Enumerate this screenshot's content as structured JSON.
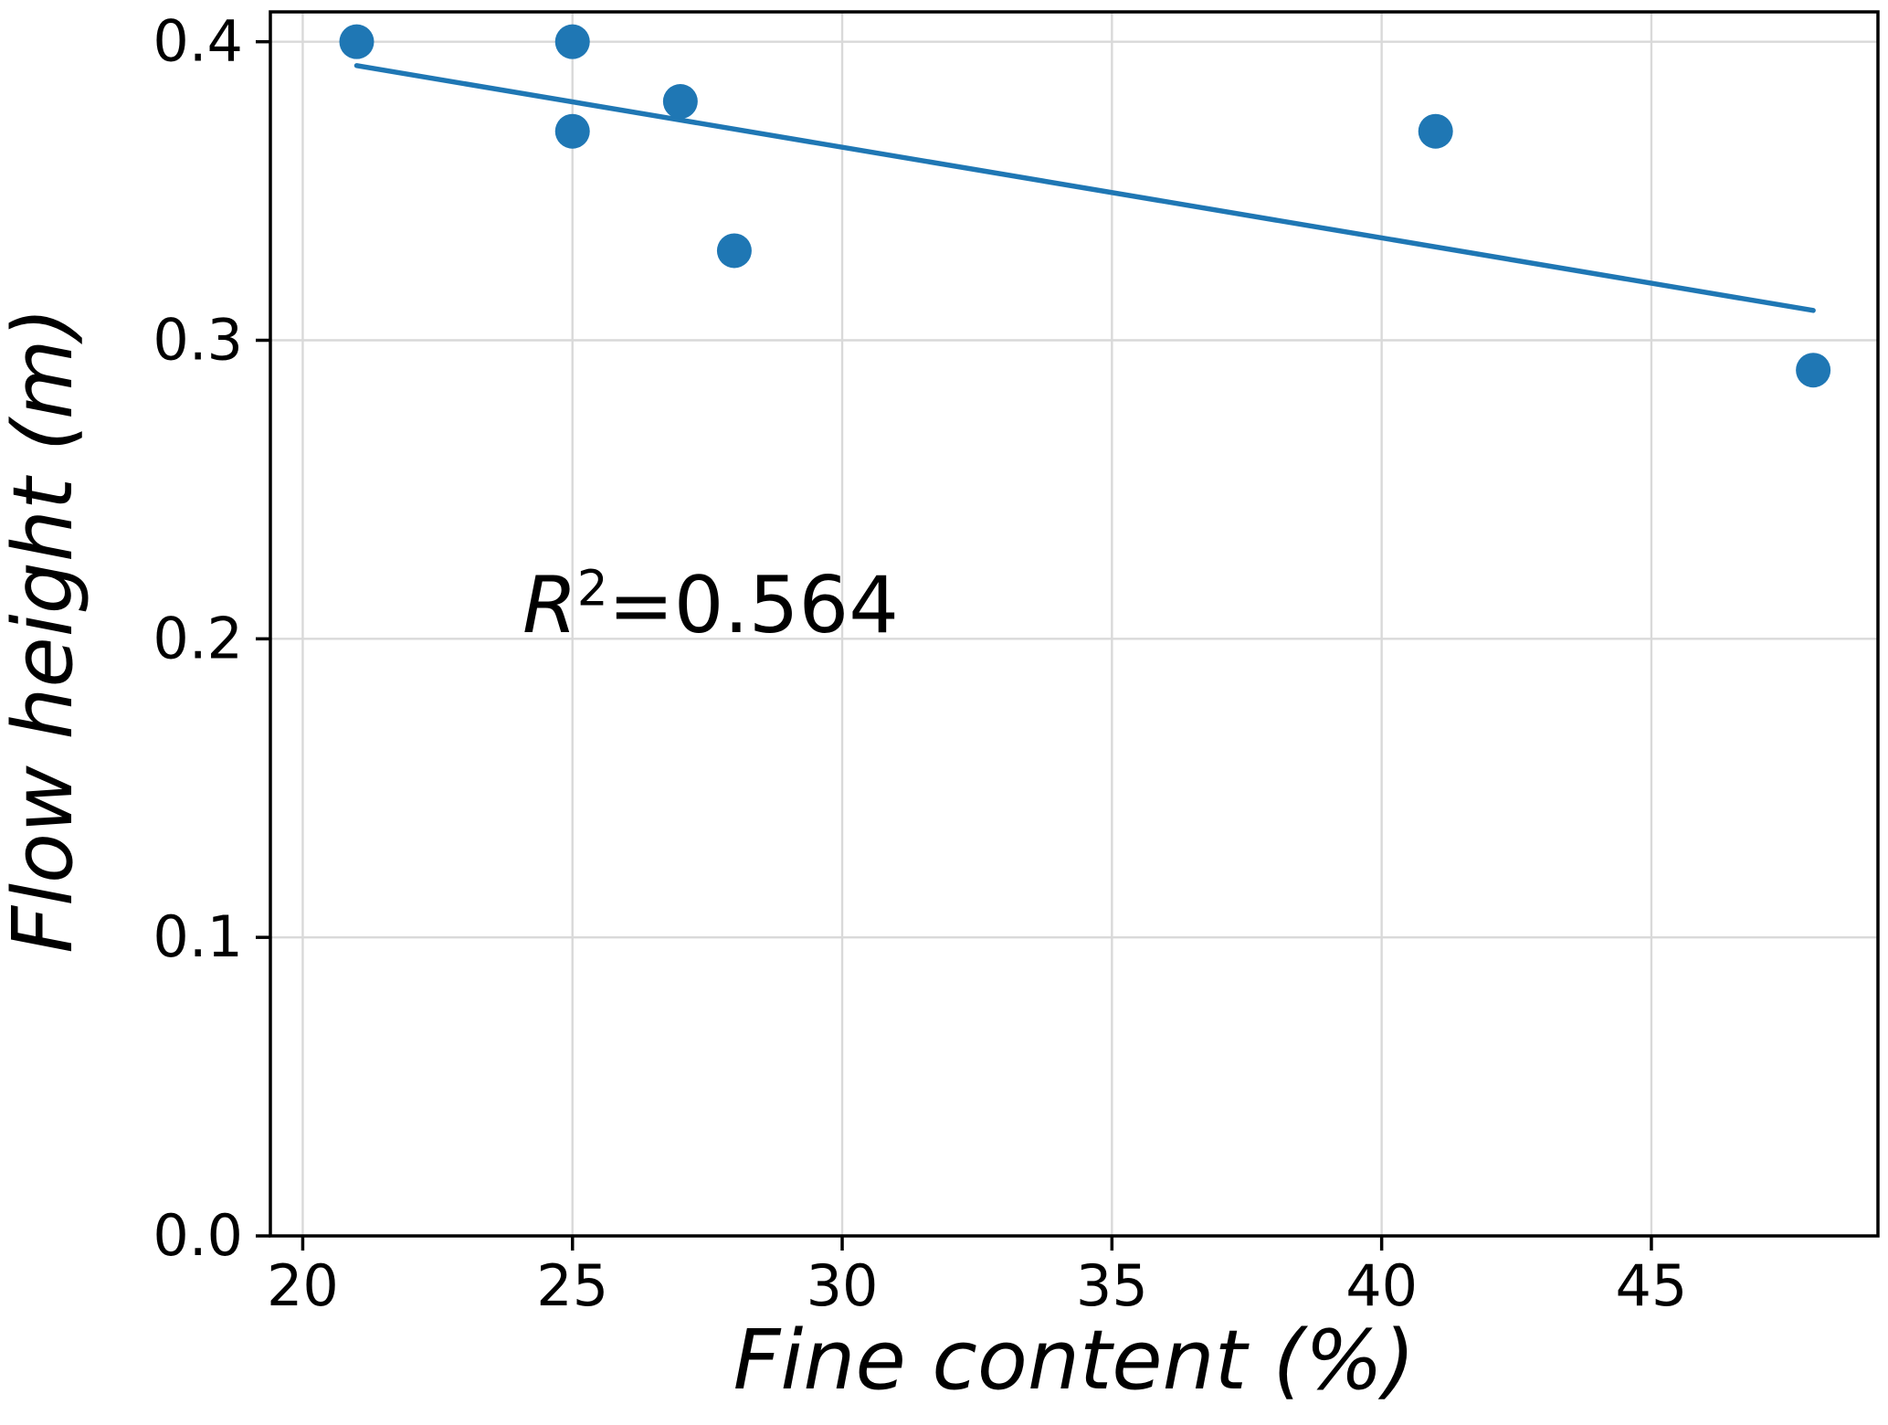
{
  "chart_data": {
    "type": "scatter",
    "title": "",
    "xlabel": "Fine content (%)",
    "ylabel": "Flow height (m)",
    "points": [
      {
        "x": 21,
        "y": 0.4
      },
      {
        "x": 25,
        "y": 0.4
      },
      {
        "x": 25,
        "y": 0.37
      },
      {
        "x": 27,
        "y": 0.38
      },
      {
        "x": 28,
        "y": 0.33
      },
      {
        "x": 41,
        "y": 0.37
      },
      {
        "x": 48,
        "y": 0.29
      }
    ],
    "trendline": {
      "x1": 21,
      "y1": 0.392,
      "x2": 48,
      "y2": 0.31
    },
    "annotation": {
      "variable": "R",
      "superscript": "2",
      "value": "=0.564",
      "r_squared": 0.564
    },
    "xlim": [
      19.4,
      49.2
    ],
    "ylim": [
      0.0,
      0.41
    ],
    "xticks": [
      {
        "value": 20,
        "label": "20"
      },
      {
        "value": 25,
        "label": "25"
      },
      {
        "value": 30,
        "label": "30"
      },
      {
        "value": 35,
        "label": "35"
      },
      {
        "value": 40,
        "label": "40"
      },
      {
        "value": 45,
        "label": "45"
      }
    ],
    "yticks": [
      {
        "value": 0.0,
        "label": "0.0"
      },
      {
        "value": 0.1,
        "label": "0.1"
      },
      {
        "value": 0.2,
        "label": "0.2"
      },
      {
        "value": 0.3,
        "label": "0.3"
      },
      {
        "value": 0.4,
        "label": "0.4"
      }
    ],
    "grid": true,
    "legend": "none",
    "colors": {
      "marker": "#1f77b4",
      "line": "#1f77b4",
      "grid": "#d9d9d9",
      "axis": "#000000",
      "background": "#ffffff"
    }
  }
}
